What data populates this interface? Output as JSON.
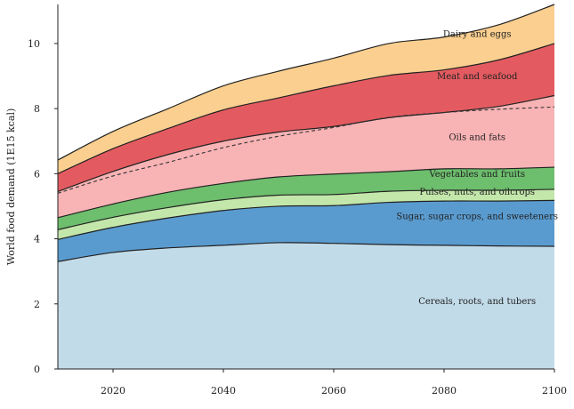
{
  "chart_data": {
    "type": "area",
    "title": "",
    "xlabel": "",
    "ylabel": "World food demand (1E15 kcal)",
    "xlim": [
      2010,
      2100
    ],
    "ylim": [
      0,
      11.2
    ],
    "xticks": [
      2020,
      2040,
      2060,
      2080,
      2100
    ],
    "yticks": [
      0,
      2,
      4,
      6,
      8,
      10
    ],
    "grid": false,
    "legend": "none (labels inside areas)",
    "x": [
      2010,
      2020,
      2030,
      2040,
      2050,
      2060,
      2070,
      2080,
      2090,
      2100
    ],
    "series": [
      {
        "name": "Cereals, roots, and tubers",
        "color": "#c2dbe9",
        "values": [
          3.3,
          3.58,
          3.72,
          3.8,
          3.88,
          3.86,
          3.82,
          3.8,
          3.78,
          3.77
        ]
      },
      {
        "name": "Sugar, sugar crops, and sweeteners",
        "color": "#5a9bcf",
        "values": [
          0.68,
          0.77,
          0.92,
          1.07,
          1.12,
          1.16,
          1.3,
          1.36,
          1.38,
          1.41
        ]
      },
      {
        "name": "Pulses, nuts, and oilcrops",
        "color": "#c3e7ab",
        "values": [
          0.3,
          0.31,
          0.32,
          0.33,
          0.34,
          0.34,
          0.34,
          0.33,
          0.33,
          0.34
        ]
      },
      {
        "name": "Vegetables and fruits",
        "color": "#6dbe6d",
        "values": [
          0.37,
          0.41,
          0.47,
          0.5,
          0.56,
          0.63,
          0.6,
          0.66,
          0.66,
          0.68
        ]
      },
      {
        "name": "Oils and fats",
        "color": "#f8b3b5",
        "values": [
          0.8,
          1.0,
          1.16,
          1.3,
          1.38,
          1.46,
          1.66,
          1.73,
          1.92,
          2.2
        ]
      },
      {
        "name": "Meat and seafood",
        "color": "#e35b60",
        "values": [
          0.55,
          0.7,
          0.8,
          0.96,
          1.05,
          1.25,
          1.3,
          1.31,
          1.43,
          1.6
        ]
      },
      {
        "name": "Dairy and eggs",
        "color": "#fbcf8f",
        "values": [
          0.42,
          0.53,
          0.61,
          0.74,
          0.82,
          0.85,
          0.98,
          1.01,
          1.08,
          1.2
        ]
      }
    ],
    "dashed_line": {
      "style": "dashed",
      "values": [
        5.4,
        5.93,
        6.35,
        6.8,
        7.15,
        7.42,
        7.73,
        7.88,
        7.98,
        8.05
      ]
    },
    "annotations": [
      {
        "text": "Dairy and eggs",
        "x": 2086,
        "y": 10.2
      },
      {
        "text": "Meat and seafood",
        "x": 2086,
        "y": 8.9
      },
      {
        "text": "Oils and fats",
        "x": 2086,
        "y": 7.03
      },
      {
        "text": "Vegetables and fruits",
        "x": 2086,
        "y": 5.9
      },
      {
        "text": "Pulses, nuts, and oilcrops",
        "x": 2086,
        "y": 5.35
      },
      {
        "text": "Sugar, sugar crops, and sweeteners",
        "x": 2086,
        "y": 4.6
      },
      {
        "text": "Cereals, roots, and tubers",
        "x": 2086,
        "y": 2.0
      }
    ]
  }
}
